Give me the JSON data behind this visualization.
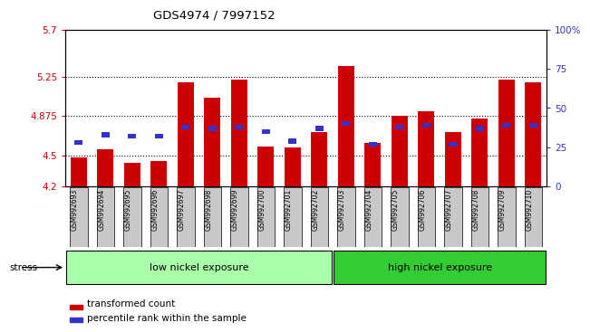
{
  "title": "GDS4974 / 7997152",
  "samples": [
    "GSM992693",
    "GSM992694",
    "GSM992695",
    "GSM992696",
    "GSM992697",
    "GSM992698",
    "GSM992699",
    "GSM992700",
    "GSM992701",
    "GSM992702",
    "GSM992703",
    "GSM992704",
    "GSM992705",
    "GSM992706",
    "GSM992707",
    "GSM992708",
    "GSM992709",
    "GSM992710"
  ],
  "transformed_count": [
    4.48,
    4.56,
    4.43,
    4.44,
    5.2,
    5.05,
    5.22,
    4.58,
    4.57,
    4.72,
    5.35,
    4.62,
    4.88,
    4.92,
    4.72,
    4.85,
    5.22,
    5.2
  ],
  "percentile_rank": [
    28,
    33,
    32,
    32,
    38,
    37,
    38,
    35,
    29,
    37,
    40,
    27,
    38,
    39,
    27,
    37,
    39,
    39
  ],
  "ymin": 4.2,
  "ymax": 5.7,
  "yticks": [
    4.2,
    4.5,
    4.875,
    5.25,
    5.7
  ],
  "ytick_labels": [
    "4.2",
    "4.5",
    "4.875",
    "5.25",
    "5.7"
  ],
  "y2min": 0,
  "y2max": 100,
  "y2ticks": [
    0,
    25,
    50,
    75,
    100
  ],
  "y2tick_labels": [
    "0",
    "25",
    "50",
    "75",
    "100%"
  ],
  "bar_color": "#CC0000",
  "pct_color": "#3333CC",
  "bar_width": 0.6,
  "low_group": {
    "label": "low nickel exposure",
    "start": 0,
    "end": 9,
    "color": "#AAFFAA"
  },
  "high_group": {
    "label": "high nickel exposure",
    "start": 10,
    "end": 17,
    "color": "#33CC33"
  },
  "stress_label": "stress",
  "legend_items": [
    {
      "label": "transformed count",
      "color": "#CC0000"
    },
    {
      "label": "percentile rank within the sample",
      "color": "#3333CC"
    }
  ],
  "title_color": "#000000",
  "left_axis_color": "#CC0000",
  "right_axis_color": "#3333CC",
  "xlabel_bg": "#C8C8C8"
}
